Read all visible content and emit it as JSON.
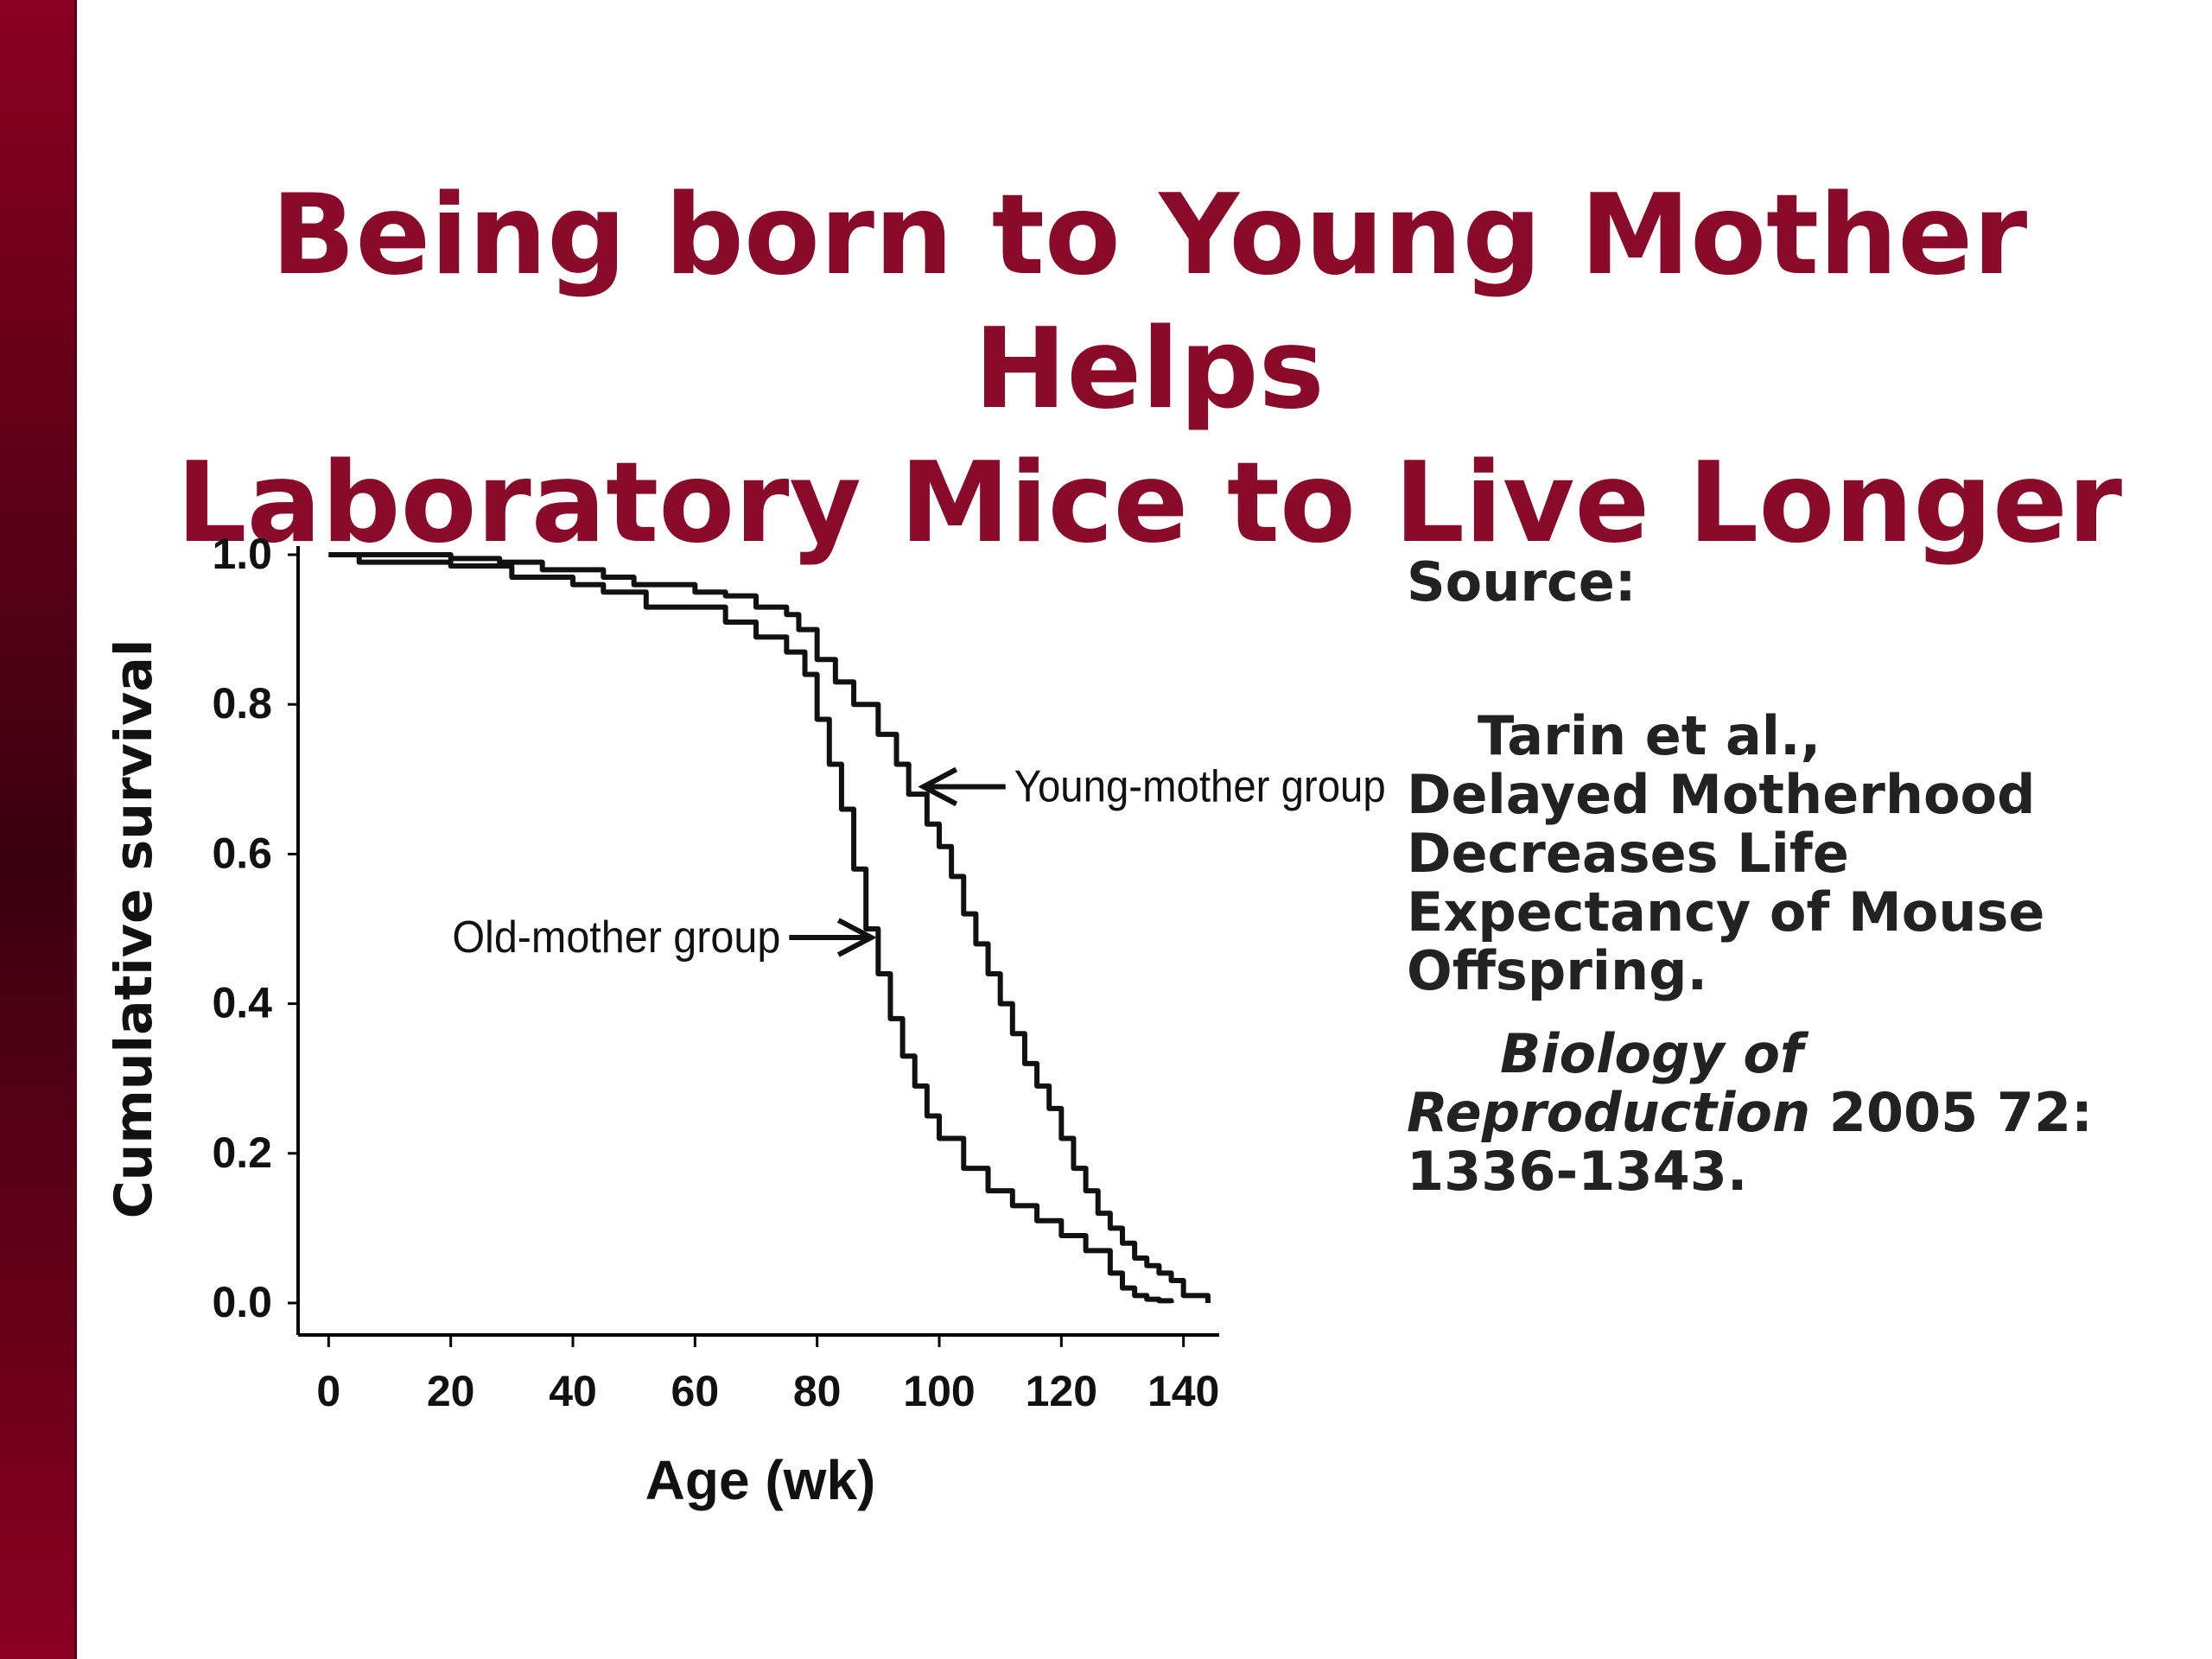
{
  "slide": {
    "title_line1": "Being born to Young Mother Helps",
    "title_line2": "Laboratory Mice to Live Longer",
    "accent_color": "#8a0a2a"
  },
  "source": {
    "heading": "Source:",
    "authors": "Tarin et al.,",
    "article": "Delayed Motherhood Decreases Life Expectancy of Mouse Offspring.",
    "journal_part1": "Biology of",
    "journal_part2": "Reproduction",
    "citation_tail": " 2005 72: 1336-1343."
  },
  "chart_data": {
    "type": "line",
    "xlabel": "Age (wk)",
    "ylabel": "Cumulative survival",
    "xlim": [
      -5,
      145
    ],
    "ylim": [
      0.0,
      1.05
    ],
    "xticks": [
      0,
      20,
      40,
      60,
      80,
      100,
      120,
      140
    ],
    "xtick_labels": [
      "0",
      "20",
      "40",
      "60",
      "80",
      "100",
      "120",
      "140"
    ],
    "yticks": [
      0.0,
      0.2,
      0.4,
      0.6,
      0.8,
      1.0
    ],
    "ytick_labels": [
      "0.0",
      "0.2",
      "0.4",
      "0.6",
      "0.8",
      "1.0"
    ],
    "grid": false,
    "series": [
      {
        "name": "Young-mother group",
        "x": [
          0,
          5,
          15,
          20,
          28,
          35,
          45,
          50,
          60,
          65,
          70,
          75,
          77,
          80,
          83,
          86,
          90,
          93,
          95,
          98,
          100,
          102,
          104,
          106,
          108,
          110,
          112,
          114,
          116,
          118,
          120,
          122,
          124,
          126,
          128,
          130,
          132,
          134,
          136,
          138,
          140,
          144
        ],
        "y": [
          1.0,
          1.0,
          1.0,
          0.995,
          0.99,
          0.98,
          0.97,
          0.96,
          0.95,
          0.945,
          0.93,
          0.92,
          0.9,
          0.86,
          0.83,
          0.8,
          0.76,
          0.72,
          0.68,
          0.64,
          0.61,
          0.57,
          0.52,
          0.48,
          0.44,
          0.4,
          0.36,
          0.32,
          0.29,
          0.26,
          0.22,
          0.18,
          0.15,
          0.12,
          0.1,
          0.08,
          0.06,
          0.05,
          0.04,
          0.03,
          0.01,
          0.0
        ]
      },
      {
        "name": "Old-mother group",
        "x": [
          0,
          5,
          15,
          20,
          30,
          40,
          45,
          52,
          60,
          65,
          70,
          75,
          78,
          80,
          82,
          84,
          86,
          88,
          90,
          92,
          94,
          96,
          98,
          100,
          104,
          108,
          112,
          116,
          120,
          124,
          128,
          130,
          132,
          134,
          136,
          138
        ],
        "y": [
          1.0,
          0.99,
          0.99,
          0.985,
          0.97,
          0.96,
          0.95,
          0.93,
          0.93,
          0.91,
          0.89,
          0.87,
          0.84,
          0.78,
          0.72,
          0.66,
          0.58,
          0.5,
          0.44,
          0.38,
          0.33,
          0.29,
          0.25,
          0.22,
          0.18,
          0.15,
          0.13,
          0.11,
          0.09,
          0.07,
          0.04,
          0.02,
          0.01,
          0.005,
          0.003,
          0.0
        ]
      }
    ],
    "annotations": [
      {
        "text": "Young-mother group",
        "arrow_to": [
          96,
          0.69
        ]
      },
      {
        "text": "Old-mother group",
        "arrow_to": [
          90,
          0.5
        ]
      }
    ]
  }
}
